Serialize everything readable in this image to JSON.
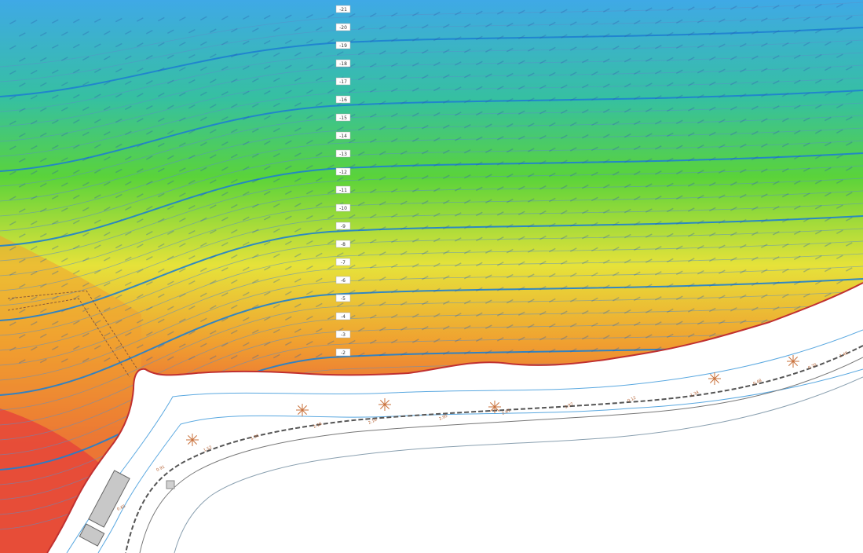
{
  "map": {
    "colors": {
      "deep": "#3fa9e6",
      "mid_deep": "#36c0a0",
      "mid": "#5ad33a",
      "shallow_mid": "#e6e23a",
      "shallow": "#f0a030",
      "nearshore": "#e6443a",
      "contour_major": "#1e7fd0",
      "contour_minor": "#5a8fc8",
      "land": "#ffffff",
      "road": "#555555",
      "vegetation": "#c8703a",
      "structure": "#c8c8c8"
    },
    "depth_labels": [
      "-21",
      "-20",
      "-19",
      "-18",
      "-17",
      "-16",
      "-15",
      "-14",
      "-13",
      "-12",
      "-11",
      "-10",
      "-9",
      "-8",
      "-7",
      "-6",
      "-5",
      "-4",
      "-3",
      "-2"
    ],
    "land_spot_heights": [
      "0.65",
      "0.91",
      "1.52",
      "1.31",
      "2.16",
      "2.10",
      "2.95",
      "2.61",
      "1.97",
      "0.12",
      "1.34",
      "0.48",
      "0.70",
      "1.45"
    ],
    "icons": [
      "compass-icon"
    ]
  }
}
